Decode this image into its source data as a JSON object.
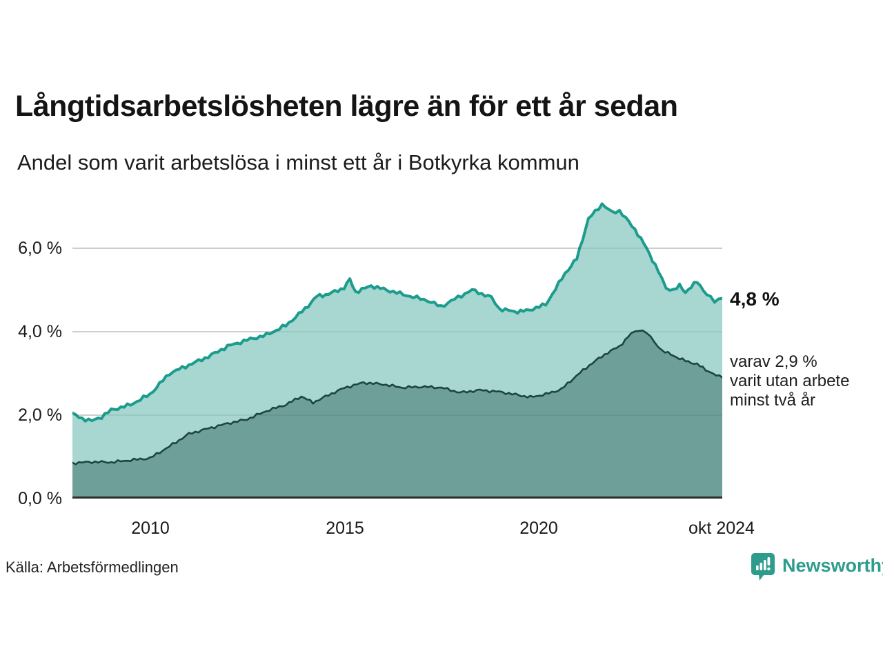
{
  "header": {
    "title": "Långtidsarbetslösheten lägre än för ett år sedan",
    "subtitle": "Andel som varit arbetslösa i minst ett år i Botkyrka kommun"
  },
  "footer": {
    "source": "Källa: Arbetsförmedlingen",
    "logo_text": "Newsworthy"
  },
  "colors": {
    "line_1yr": "#1b9c8c",
    "fill_1yr": "#a7d7d0",
    "line_2yr": "#1d453f",
    "fill_2yr": "#6f9f99",
    "gridline": "#dcdcdc",
    "axis": "#2d2d2d",
    "logo_teal": "#2e9c8d"
  },
  "chart_data": {
    "type": "area",
    "title": "Långtidsarbetslösheten lägre än för ett år sedan",
    "subtitle": "Andel som varit arbetslösa i minst ett år i Botkyrka kommun",
    "x_range": [
      2008.0,
      2024.75
    ],
    "y_range": [
      0,
      7.24
    ],
    "grid_values": [
      2,
      4,
      6
    ],
    "y_ticks": [
      "0,0 %",
      "2,0 %",
      "4,0 %",
      "6,0 %"
    ],
    "x_ticks": [
      "2010",
      "2015",
      "2020",
      "okt 2024"
    ],
    "x_tick_values": [
      2010,
      2015,
      2020,
      2024.75
    ],
    "legend_position": "none",
    "annotations": {
      "latest_value": "4,8 %",
      "secondary_lines": [
        "varav 2,9 %",
        "varit utan arbete",
        "minst två år"
      ]
    },
    "series": [
      {
        "name": "Arbetslösa minst ett år",
        "unit": "%",
        "points": [
          [
            2008.0,
            2.03
          ],
          [
            2008.25,
            1.92
          ],
          [
            2008.5,
            1.86
          ],
          [
            2008.75,
            1.96
          ],
          [
            2009.0,
            2.12
          ],
          [
            2009.5,
            2.25
          ],
          [
            2010.0,
            2.5
          ],
          [
            2010.5,
            3.0
          ],
          [
            2011.0,
            3.2
          ],
          [
            2011.5,
            3.4
          ],
          [
            2012.0,
            3.65
          ],
          [
            2012.5,
            3.8
          ],
          [
            2013.0,
            3.92
          ],
          [
            2013.5,
            4.15
          ],
          [
            2014.0,
            4.55
          ],
          [
            2014.3,
            4.85
          ],
          [
            2014.6,
            4.9
          ],
          [
            2015.0,
            5.05
          ],
          [
            2015.15,
            5.25
          ],
          [
            2015.3,
            4.95
          ],
          [
            2015.7,
            5.1
          ],
          [
            2016.1,
            5.0
          ],
          [
            2016.7,
            4.85
          ],
          [
            2017.15,
            4.75
          ],
          [
            2017.5,
            4.6
          ],
          [
            2017.85,
            4.78
          ],
          [
            2018.3,
            5.0
          ],
          [
            2018.8,
            4.82
          ],
          [
            2019.0,
            4.55
          ],
          [
            2019.4,
            4.48
          ],
          [
            2019.7,
            4.5
          ],
          [
            2020.2,
            4.65
          ],
          [
            2020.7,
            5.4
          ],
          [
            2021.0,
            5.75
          ],
          [
            2021.3,
            6.7
          ],
          [
            2021.65,
            7.06
          ],
          [
            2021.9,
            6.86
          ],
          [
            2022.1,
            6.9
          ],
          [
            2022.5,
            6.45
          ],
          [
            2022.8,
            6.0
          ],
          [
            2023.1,
            5.45
          ],
          [
            2023.3,
            5.05
          ],
          [
            2023.5,
            5.0
          ],
          [
            2023.65,
            5.1
          ],
          [
            2023.8,
            4.95
          ],
          [
            2024.1,
            5.2
          ],
          [
            2024.35,
            4.9
          ],
          [
            2024.55,
            4.72
          ],
          [
            2024.75,
            4.8
          ]
        ]
      },
      {
        "name": "Arbetslösa minst två år",
        "unit": "%",
        "points": [
          [
            2008.0,
            0.85
          ],
          [
            2008.5,
            0.88
          ],
          [
            2009.0,
            0.87
          ],
          [
            2009.5,
            0.92
          ],
          [
            2010.0,
            0.97
          ],
          [
            2010.5,
            1.25
          ],
          [
            2011.0,
            1.55
          ],
          [
            2011.5,
            1.68
          ],
          [
            2012.0,
            1.8
          ],
          [
            2012.5,
            1.9
          ],
          [
            2013.0,
            2.1
          ],
          [
            2013.5,
            2.25
          ],
          [
            2013.9,
            2.45
          ],
          [
            2014.2,
            2.3
          ],
          [
            2014.6,
            2.48
          ],
          [
            2015.0,
            2.65
          ],
          [
            2015.5,
            2.78
          ],
          [
            2016.0,
            2.74
          ],
          [
            2016.5,
            2.66
          ],
          [
            2017.0,
            2.68
          ],
          [
            2017.5,
            2.66
          ],
          [
            2018.0,
            2.54
          ],
          [
            2018.5,
            2.6
          ],
          [
            2019.0,
            2.56
          ],
          [
            2019.5,
            2.48
          ],
          [
            2019.8,
            2.43
          ],
          [
            2020.2,
            2.5
          ],
          [
            2020.6,
            2.62
          ],
          [
            2021.0,
            2.95
          ],
          [
            2021.4,
            3.25
          ],
          [
            2021.8,
            3.5
          ],
          [
            2022.1,
            3.65
          ],
          [
            2022.4,
            3.95
          ],
          [
            2022.6,
            4.05
          ],
          [
            2022.8,
            3.98
          ],
          [
            2023.0,
            3.75
          ],
          [
            2023.2,
            3.55
          ],
          [
            2023.5,
            3.42
          ],
          [
            2023.8,
            3.3
          ],
          [
            2024.1,
            3.22
          ],
          [
            2024.4,
            3.05
          ],
          [
            2024.6,
            2.95
          ],
          [
            2024.75,
            2.9
          ]
        ]
      }
    ]
  }
}
